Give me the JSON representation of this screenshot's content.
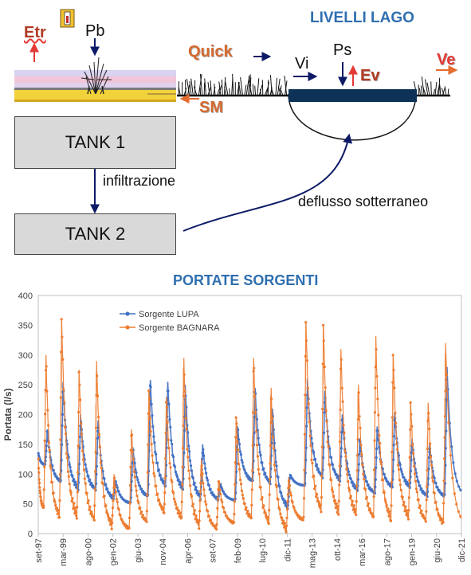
{
  "diagram": {
    "title": "LIVELLI LAGO",
    "etr": "Etr",
    "pb": "Pb",
    "quick": "Quick",
    "sm": "SM",
    "vi": "Vi",
    "ps": "Ps",
    "ev": "Ev",
    "ve": "Ve",
    "tank1": "TANK 1",
    "tank2": "TANK  2",
    "infiltrazione": "infiltrazione",
    "deflusso": "deflusso sotterraneo",
    "thermometer_icon": "thermometer-icon",
    "colors": {
      "title": "#2f6fb0",
      "red": "#e53935",
      "navy": "#0d1a66",
      "orange": "#d4692f",
      "lake": "#0e3257",
      "sand": "#f2d23a"
    }
  },
  "chart_data": {
    "type": "line",
    "title": "PORTATE SORGENTI",
    "xlabel": "",
    "ylabel": "Portata (l/s)",
    "ylim": [
      0,
      400
    ],
    "yticks": [
      0,
      50,
      100,
      150,
      200,
      250,
      300,
      350,
      400
    ],
    "xlim": [
      "1997-09",
      "2021-12"
    ],
    "xticks": [
      "set-97",
      "mar-99",
      "ago-00",
      "gen-02",
      "giu-03",
      "nov-04",
      "apr-06",
      "set-07",
      "feb-09",
      "lug-10",
      "dic-11",
      "mag-13",
      "ott-14",
      "mar-16",
      "ago-17",
      "gen-19",
      "giu-20",
      "dic-21"
    ],
    "legend_position": "top-left",
    "grid": false,
    "series": [
      {
        "name": "Sorgente LUPA",
        "color": "#4472c4",
        "annual": [
          {
            "year": 1998,
            "peak": 175,
            "low": 115
          },
          {
            "year": 1999,
            "peak": 255,
            "low": 85
          },
          {
            "year": 2000,
            "peak": 200,
            "low": 70
          },
          {
            "year": 2001,
            "peak": 190,
            "low": 70
          },
          {
            "year": 2002,
            "peak": 90,
            "low": 55
          },
          {
            "year": 2003,
            "peak": 145,
            "low": 50
          },
          {
            "year": 2004,
            "peak": 258,
            "low": 60
          },
          {
            "year": 2005,
            "peak": 255,
            "low": 75
          },
          {
            "year": 2006,
            "peak": 250,
            "low": 70
          },
          {
            "year": 2007,
            "peak": 150,
            "low": 55
          },
          {
            "year": 2008,
            "peak": 85,
            "low": 55
          },
          {
            "year": 2009,
            "peak": 180,
            "low": 55
          },
          {
            "year": 2010,
            "peak": 245,
            "low": 85
          },
          {
            "year": 2011,
            "peak": 210,
            "low": 80
          },
          {
            "year": 2012,
            "peak": 100,
            "low": 40
          },
          {
            "year": 2013,
            "peak": 260,
            "low": 80
          },
          {
            "year": 2014,
            "peak": 240,
            "low": 90
          },
          {
            "year": 2015,
            "peak": 200,
            "low": 85
          },
          {
            "year": 2016,
            "peak": 160,
            "low": 70
          },
          {
            "year": 2017,
            "peak": 180,
            "low": 65
          },
          {
            "year": 2018,
            "peak": 205,
            "low": 75
          },
          {
            "year": 2019,
            "peak": 160,
            "low": 75
          },
          {
            "year": 2020,
            "peak": 150,
            "low": 60
          },
          {
            "year": 2021,
            "peak": 280,
            "low": 60
          }
        ]
      },
      {
        "name": "Sorgente BAGNARA",
        "color": "#ed7d31",
        "annual": [
          {
            "year": 1998,
            "peak": 300,
            "low": 40
          },
          {
            "year": 1999,
            "peak": 360,
            "low": 20
          },
          {
            "year": 2000,
            "peak": 275,
            "low": 20
          },
          {
            "year": 2001,
            "peak": 290,
            "low": 15
          },
          {
            "year": 2002,
            "peak": 100,
            "low": 5
          },
          {
            "year": 2003,
            "peak": 175,
            "low": 5
          },
          {
            "year": 2004,
            "peak": 240,
            "low": 15
          },
          {
            "year": 2005,
            "peak": 230,
            "low": 30
          },
          {
            "year": 2006,
            "peak": 295,
            "low": 20
          },
          {
            "year": 2007,
            "peak": 125,
            "low": 5
          },
          {
            "year": 2008,
            "peak": 90,
            "low": 5
          },
          {
            "year": 2009,
            "peak": 195,
            "low": 15
          },
          {
            "year": 2010,
            "peak": 295,
            "low": 20
          },
          {
            "year": 2011,
            "peak": 245,
            "low": 10
          },
          {
            "year": 2012,
            "peak": 95,
            "low": 0
          },
          {
            "year": 2013,
            "peak": 355,
            "low": 20
          },
          {
            "year": 2014,
            "peak": 350,
            "low": 30
          },
          {
            "year": 2015,
            "peak": 310,
            "low": 25
          },
          {
            "year": 2016,
            "peak": 250,
            "low": 25
          },
          {
            "year": 2017,
            "peak": 332,
            "low": 20
          },
          {
            "year": 2018,
            "peak": 300,
            "low": 15
          },
          {
            "year": 2019,
            "peak": 220,
            "low": 20
          },
          {
            "year": 2020,
            "peak": 220,
            "low": 15
          },
          {
            "year": 2021,
            "peak": 320,
            "low": 10
          }
        ]
      }
    ]
  }
}
